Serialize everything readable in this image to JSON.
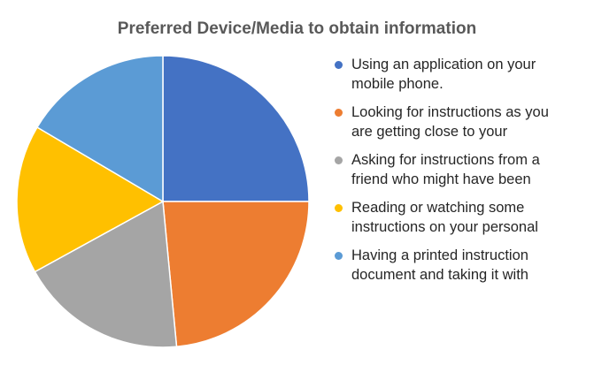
{
  "chart_data": {
    "type": "pie",
    "title": "Preferred Device/Media to obtain information",
    "categories": [
      "Using an application on your mobile phone.",
      "Looking for instructions as you are getting close to your",
      "Asking for instructions from a friend who might have been",
      "Reading or watching some instructions on your personal",
      "Having a printed instruction document and taking it with"
    ],
    "values": [
      25,
      23.5,
      18.5,
      16.5,
      16.5
    ],
    "colors": [
      "#4472C4",
      "#ED7D31",
      "#A5A5A5",
      "#FFC000",
      "#5B9BD5"
    ],
    "legend_position": "right"
  },
  "legend": {
    "items": [
      {
        "line1": "Using an application on your",
        "line2": "mobile phone."
      },
      {
        "line1": "Looking for instructions as you",
        "line2": "are getting close to your"
      },
      {
        "line1": "Asking for instructions from a",
        "line2": "friend who might have been"
      },
      {
        "line1": "Reading or watching some",
        "line2": "instructions on your personal"
      },
      {
        "line1": "Having a printed instruction",
        "line2": "document and taking it with"
      }
    ]
  }
}
